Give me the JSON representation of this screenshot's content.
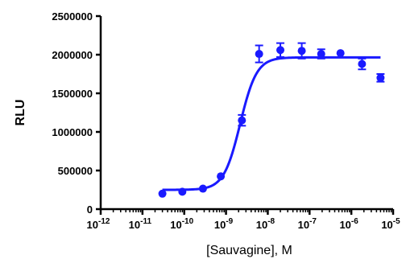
{
  "chart_data": {
    "type": "scatter",
    "xlabel": "[Sauvagine], M",
    "ylabel": "RLU",
    "x_scale": "log",
    "xlim": [
      1e-12,
      1e-05
    ],
    "ylim": [
      0,
      2500000
    ],
    "x_tick_base": "10",
    "x_tick_exponents": [
      "-12",
      "-11",
      "-10",
      "-9",
      "-8",
      "-7",
      "-6",
      "-5"
    ],
    "y_ticks": [
      "0",
      "500000",
      "1000000",
      "1500000",
      "2000000",
      "2500000"
    ],
    "y_tick_values": [
      0,
      500000,
      1000000,
      1500000,
      2000000,
      2500000
    ],
    "grid": false,
    "color": "#1a1aff",
    "points": [
      {
        "x": 3e-11,
        "y": 200000,
        "err": 0
      },
      {
        "x": 9e-11,
        "y": 225000,
        "err": 0
      },
      {
        "x": 2.8e-10,
        "y": 265000,
        "err": 0
      },
      {
        "x": 7.5e-10,
        "y": 425000,
        "err": 0
      },
      {
        "x": 2.4e-09,
        "y": 1150000,
        "err": 70000
      },
      {
        "x": 6.2e-09,
        "y": 2010000,
        "err": 110000
      },
      {
        "x": 2e-08,
        "y": 2060000,
        "err": 90000
      },
      {
        "x": 6.5e-08,
        "y": 2050000,
        "err": 100000
      },
      {
        "x": 1.9e-07,
        "y": 2010000,
        "err": 60000
      },
      {
        "x": 5.5e-07,
        "y": 2020000,
        "err": 0
      },
      {
        "x": 1.8e-06,
        "y": 1880000,
        "err": 70000
      },
      {
        "x": 5e-06,
        "y": 1700000,
        "err": 50000
      }
    ],
    "fit": {
      "bottom": 250000,
      "top": 1965000,
      "log_ec50": -8.66,
      "hill": 2.2,
      "x_range": [
        3e-11,
        5e-06
      ]
    }
  }
}
